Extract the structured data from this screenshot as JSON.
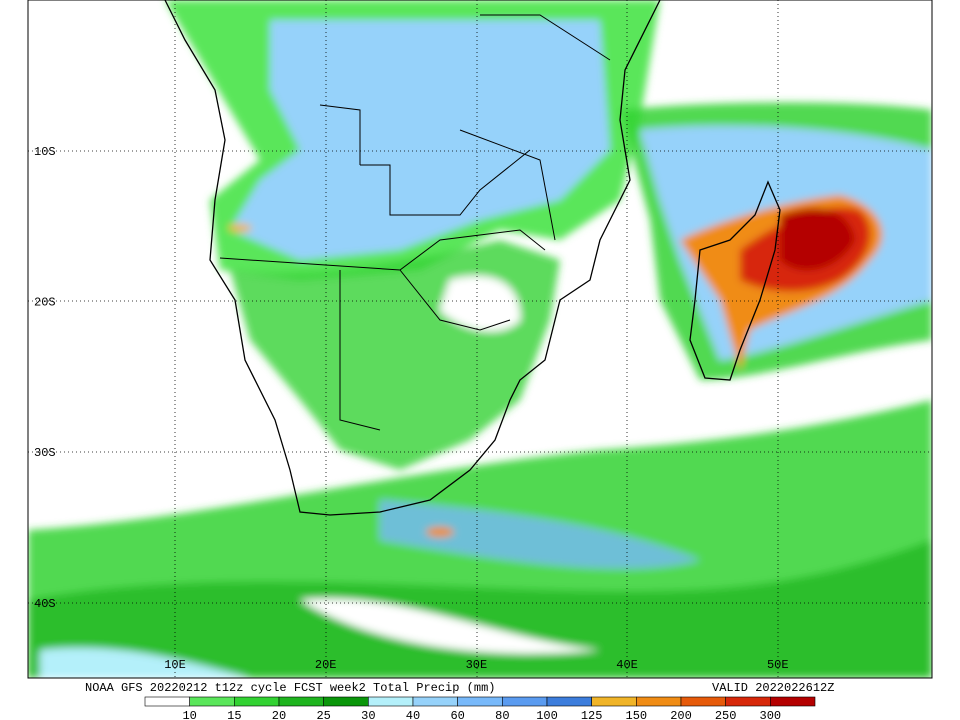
{
  "map": {
    "title": "NOAA GFS 20220212 t12z cycle FCST week2 Total Precip (mm)",
    "valid": "VALID 2022022612Z",
    "lat_labels": [
      "10S",
      "20S",
      "30S",
      "40S"
    ],
    "lon_labels": [
      "10E",
      "20E",
      "30E",
      "40E",
      "50E"
    ],
    "legend": {
      "labels": [
        "10",
        "15",
        "20",
        "25",
        "30",
        "40",
        "60",
        "80",
        "100",
        "125",
        "150",
        "200",
        "250",
        "300"
      ],
      "colors": [
        "#ffffff",
        "#5ae65a",
        "#32d232",
        "#1eb41e",
        "#0a960a",
        "#b4f0fa",
        "#96d2fa",
        "#78b9fa",
        "#5a9bf0",
        "#3c7ddc",
        "#f0b428",
        "#f08c14",
        "#e65a0a",
        "#d7280a",
        "#b40000"
      ]
    }
  }
}
